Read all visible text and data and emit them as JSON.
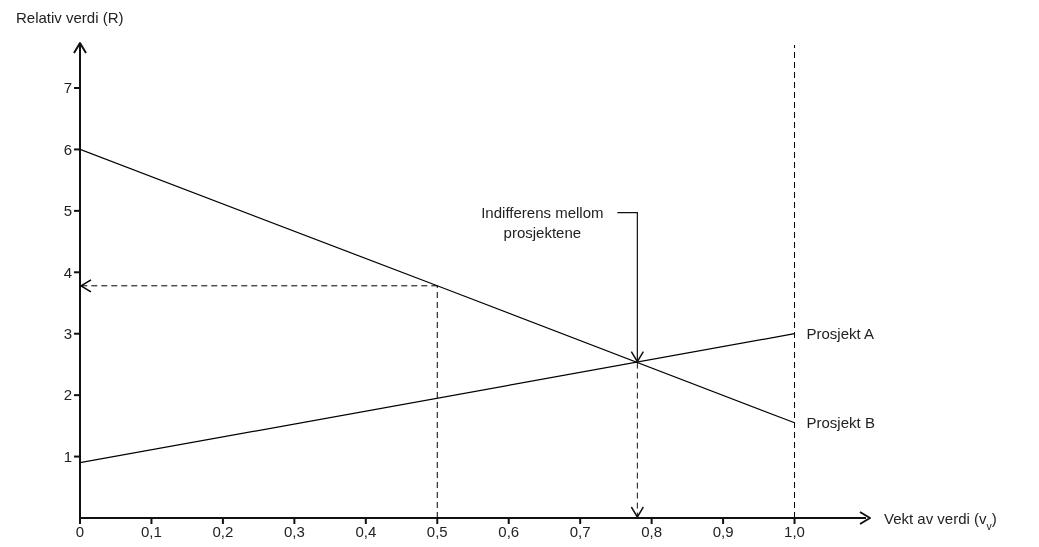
{
  "chart_data": {
    "type": "line",
    "xlabel": "Vekt av verdi (v$_{v}$)",
    "ylabel": "Relativ verdi (R)",
    "xlim": [
      0,
      1.1
    ],
    "ylim": [
      0,
      7.7
    ],
    "xticks": [
      0,
      {
        "value": 0.1,
        "label": "0,1"
      },
      {
        "value": 0.2,
        "label": "0,2"
      },
      {
        "value": 0.3,
        "label": "0,3"
      },
      {
        "value": 0.4,
        "label": "0,4"
      },
      {
        "value": 0.5,
        "label": "0,5"
      },
      {
        "value": 0.6,
        "label": "0,6"
      },
      {
        "value": 0.7,
        "label": "0,7"
      },
      {
        "value": 0.8,
        "label": "0,8"
      },
      {
        "value": 0.9,
        "label": "0,9"
      },
      {
        "value": 1.0,
        "label": "1,0"
      }
    ],
    "yticks": [
      1,
      2,
      3,
      4,
      5,
      6,
      7
    ],
    "marker": "none",
    "series": [
      {
        "name": "Prosjekt A",
        "color": "#000000",
        "x": [
          0,
          1
        ],
        "values": [
          0.9,
          3.0
        ],
        "line_style": "solid"
      },
      {
        "name": "Prosjekt B",
        "color": "#000000",
        "x": [
          0,
          0.5,
          1
        ],
        "values": [
          6,
          3.78,
          1.55
        ],
        "line_style": "solid"
      }
    ],
    "ref_lines": [
      {
        "axis": "x",
        "value": 1.0,
        "line_style": "dashed",
        "color": "#000000"
      }
    ],
    "annotations": [
      {
        "text": "Indifferens mellom\nprosjektene",
        "x": 0.78,
        "y": 2.53
      }
    ]
  }
}
